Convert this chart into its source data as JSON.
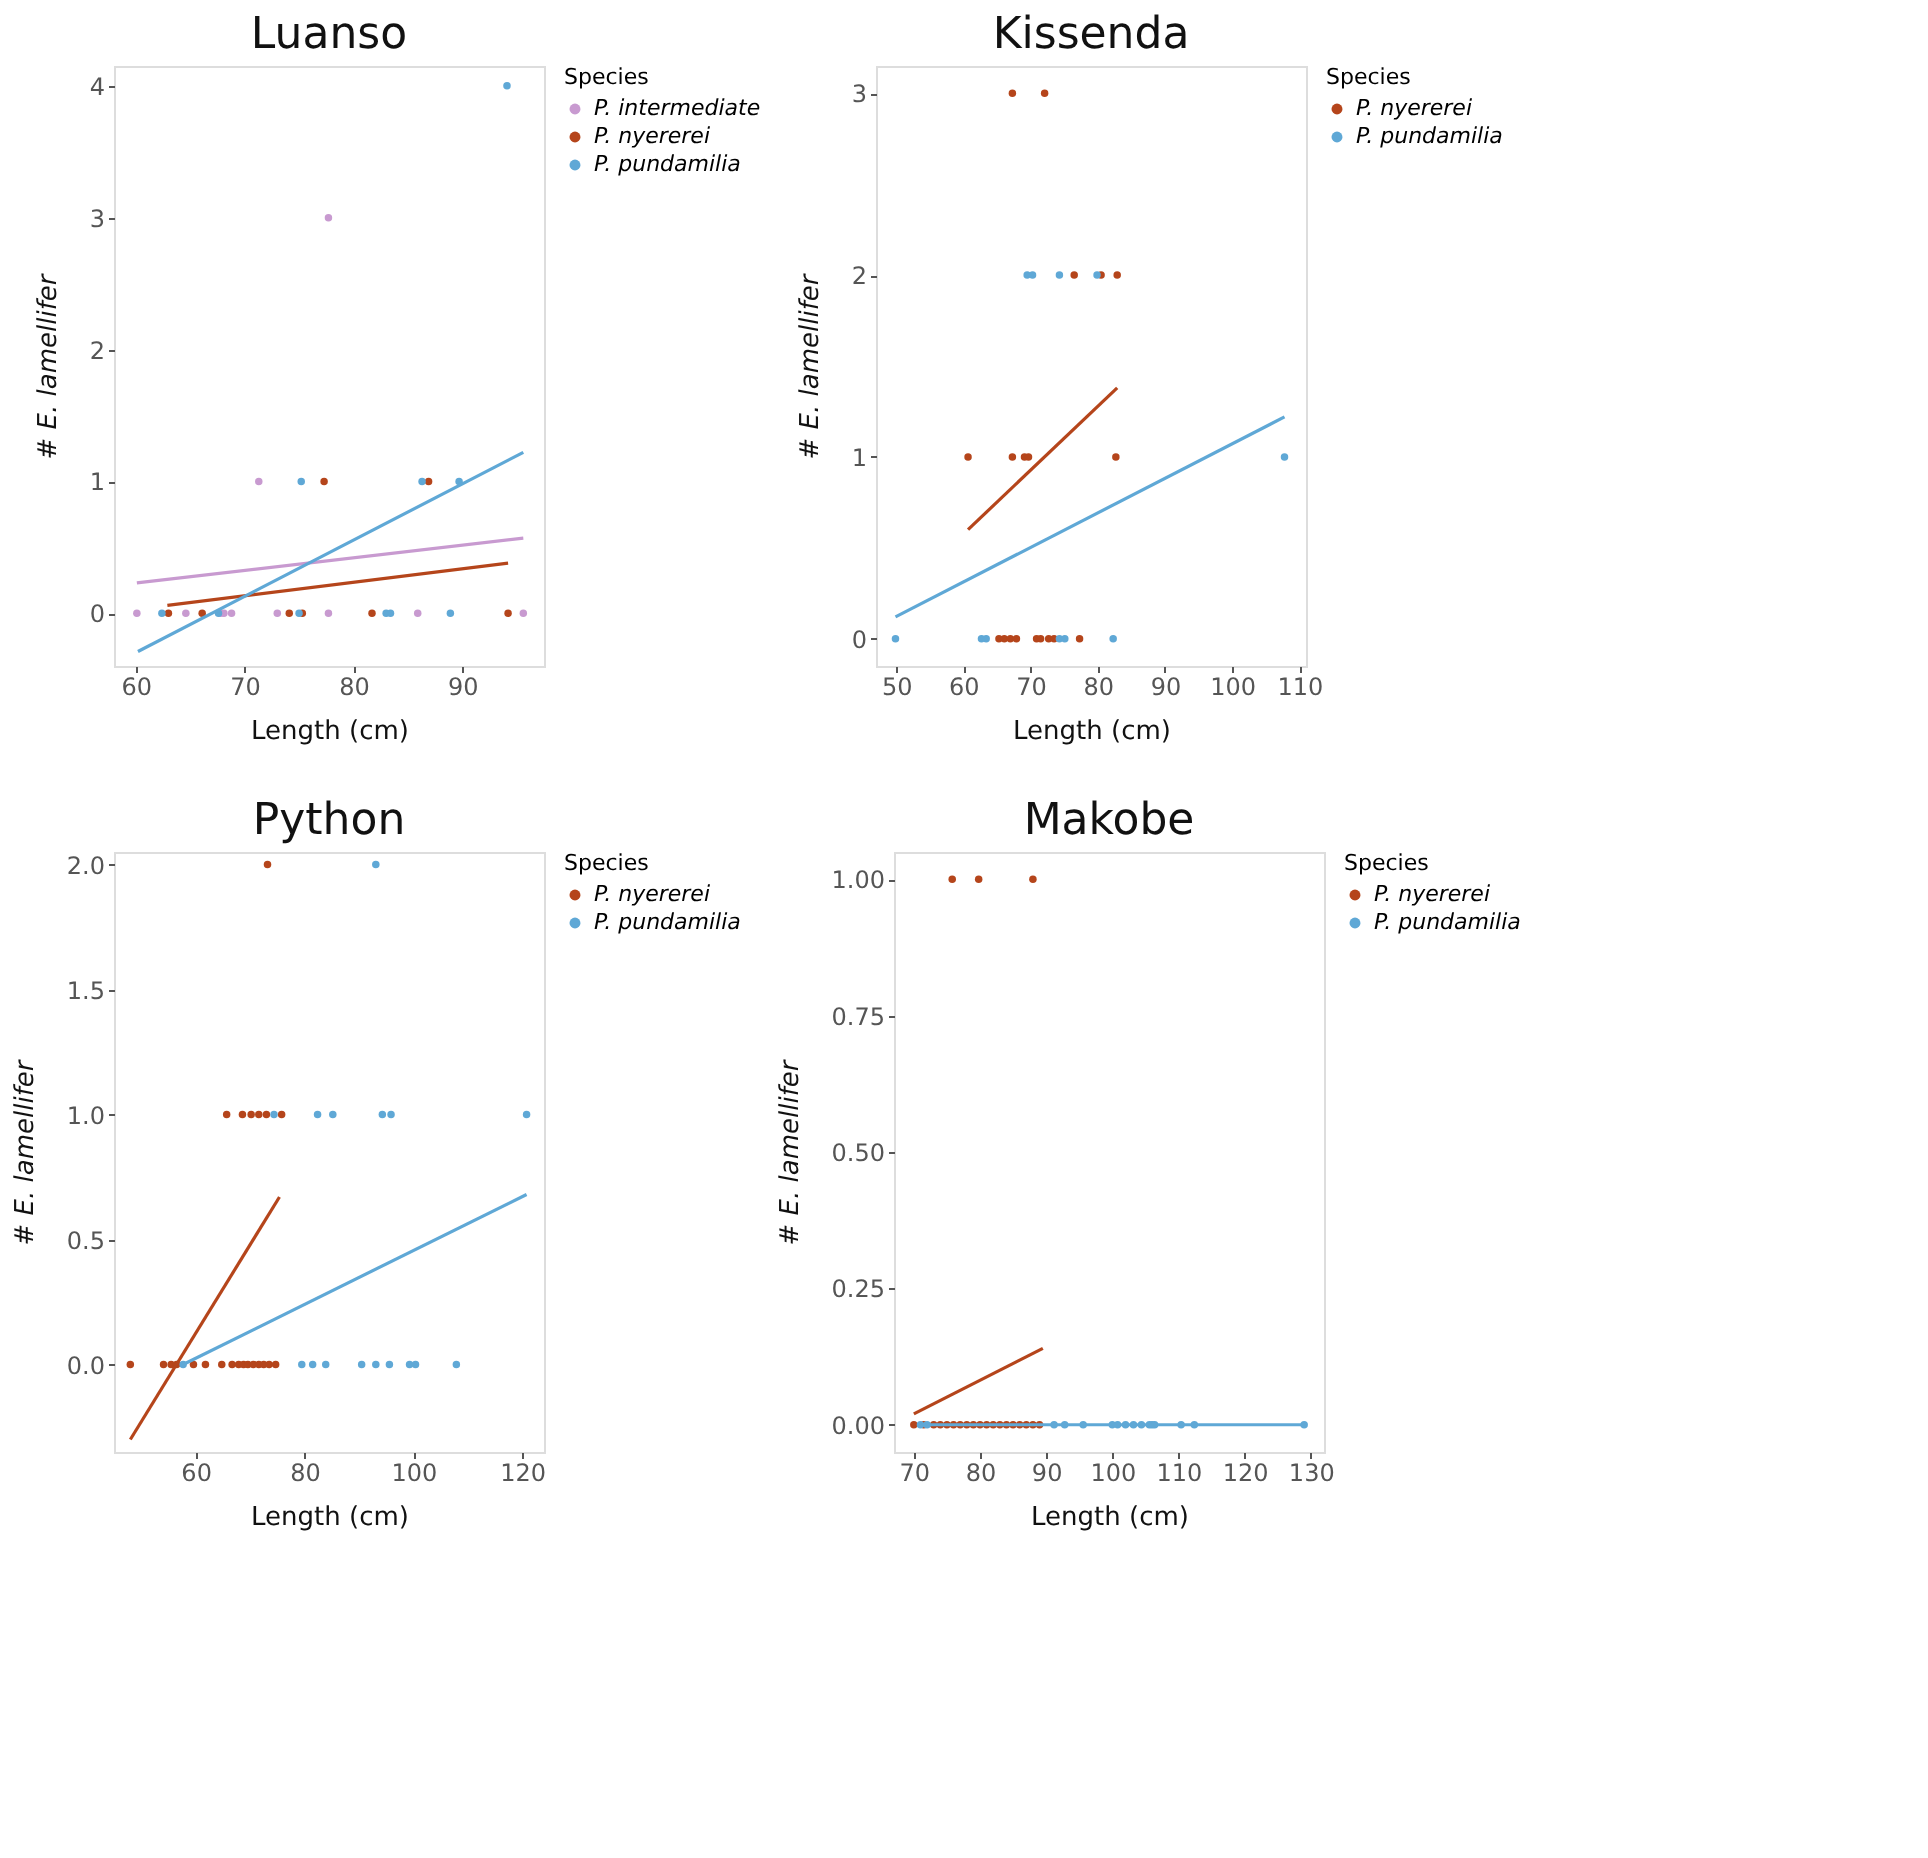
{
  "chart_data": [
    {
      "type": "scatter",
      "title": "Luanso",
      "xlabel": "Length (cm)",
      "ylabel": "# E. lamellifer",
      "legend_title": "Species",
      "legend": "right",
      "grid": false,
      "marker": "circle",
      "xlim": [
        58,
        97.5
      ],
      "xticks": [
        60,
        70,
        80,
        90
      ],
      "ylim": [
        -0.4,
        4.15
      ],
      "yticks": [
        0,
        1,
        2,
        3,
        4
      ],
      "series": [
        {
          "name": "P. intermediate",
          "color": "#c89ad0",
          "x": [
            60.1,
            64.6,
            67.8,
            68.1,
            68.8,
            73.0,
            77.7,
            85.9,
            95.6,
            71.3,
            77.7
          ],
          "values": [
            0,
            0,
            0,
            0,
            0,
            0,
            0,
            0,
            0,
            1,
            3
          ]
        },
        {
          "name": "P. nyererei",
          "color": "#b5451b",
          "x": [
            63.0,
            66.1,
            74.1,
            75.3,
            81.7,
            94.2,
            77.3,
            86.9
          ],
          "values": [
            0,
            0,
            0,
            0,
            0,
            0,
            1,
            1
          ]
        },
        {
          "name": "P. pundamilia",
          "color": "#5fa8d6",
          "x": [
            62.4,
            67.6,
            75.0,
            83.0,
            83.4,
            88.9,
            75.2,
            86.3,
            89.7,
            94.1
          ],
          "values": [
            0,
            0,
            0,
            0,
            0,
            0,
            1,
            1,
            1,
            4
          ]
        },
        {
          "type": "line",
          "marker": "none",
          "line_style": "solid",
          "color": "#c89ad0",
          "x": [
            60.1,
            95.6
          ],
          "values": [
            0.23,
            0.57
          ]
        },
        {
          "type": "line",
          "marker": "none",
          "line_style": "solid",
          "color": "#b5451b",
          "x": [
            62.9,
            94.2
          ],
          "values": [
            0.06,
            0.38
          ]
        },
        {
          "type": "line",
          "marker": "none",
          "line_style": "solid",
          "color": "#5fa8d6",
          "x": [
            60.2,
            95.6
          ],
          "values": [
            -0.29,
            1.22
          ]
        }
      ]
    },
    {
      "type": "scatter",
      "title": "Kissenda",
      "xlabel": "Length (cm)",
      "ylabel": "# E. lamellifer",
      "legend_title": "Species",
      "legend": "right",
      "grid": false,
      "marker": "circle",
      "xlim": [
        47,
        111
      ],
      "xticks": [
        50,
        60,
        70,
        80,
        90,
        100,
        110
      ],
      "ylim": [
        -0.15,
        3.15
      ],
      "yticks": [
        0,
        1,
        2,
        3
      ],
      "series": [
        {
          "name": "P. nyererei",
          "color": "#b5451b",
          "x": [
            67.3,
            72.1,
            76.5,
            80.5,
            82.9,
            60.7,
            67.3,
            69.1,
            69.7,
            82.7,
            65.3,
            66.1,
            67.0,
            67.9,
            70.9,
            71.5,
            72.7,
            73.5,
            77.3
          ],
          "values": [
            3,
            3,
            2,
            2,
            2,
            1,
            1,
            1,
            1,
            1,
            0,
            0,
            0,
            0,
            0,
            0,
            0,
            0,
            0
          ]
        },
        {
          "name": "P. pundamilia",
          "color": "#5fa8d6",
          "x": [
            69.5,
            70.3,
            74.3,
            79.9,
            107.8,
            49.9,
            62.7,
            63.4,
            74.3,
            75.1,
            82.3
          ],
          "values": [
            2,
            2,
            2,
            2,
            1,
            0,
            0,
            0,
            0,
            0,
            0
          ]
        },
        {
          "type": "line",
          "marker": "none",
          "line_style": "solid",
          "color": "#b5451b",
          "x": [
            60.7,
            82.9
          ],
          "values": [
            0.6,
            1.38
          ]
        },
        {
          "type": "line",
          "marker": "none",
          "line_style": "solid",
          "color": "#5fa8d6",
          "x": [
            49.9,
            107.8
          ],
          "values": [
            0.12,
            1.22
          ]
        }
      ]
    },
    {
      "type": "scatter",
      "title": "Python",
      "xlabel": "Length (cm)",
      "ylabel": "# E. lamellifer",
      "legend_title": "Species",
      "legend": "right",
      "grid": false,
      "marker": "circle",
      "xlim": [
        45,
        124
      ],
      "xticks": [
        60,
        80,
        100,
        120
      ],
      "ylim": [
        -0.35,
        2.05
      ],
      "yticks": [
        {
          "value": 0,
          "label": "0.0"
        },
        {
          "value": 0.5,
          "label": "0.5"
        },
        {
          "value": 1,
          "label": "1.0"
        },
        {
          "value": 1.5,
          "label": "1.5"
        },
        {
          "value": 2,
          "label": "2.0"
        }
      ],
      "series": [
        {
          "name": "P. nyererei",
          "color": "#b5451b",
          "x": [
            73.2,
            65.7,
            68.6,
            70.2,
            71.6,
            73.0,
            75.8,
            48.0,
            54.1,
            55.5,
            56.5,
            59.6,
            61.8,
            64.8,
            66.7,
            67.9,
            68.8,
            69.6,
            70.6,
            71.6,
            72.5,
            73.5,
            74.7
          ],
          "values": [
            2,
            1,
            1,
            1,
            1,
            1,
            1,
            0,
            0,
            0,
            0,
            0,
            0,
            0,
            0,
            0,
            0,
            0,
            0,
            0,
            0,
            0,
            0
          ]
        },
        {
          "name": "P. pundamilia",
          "color": "#5fa8d6",
          "x": [
            93.1,
            74.4,
            82.4,
            85.2,
            94.3,
            95.9,
            120.8,
            57.7,
            79.5,
            81.5,
            83.9,
            90.5,
            93.1,
            95.6,
            99.3,
            100.4,
            107.9
          ],
          "values": [
            2,
            1,
            1,
            1,
            1,
            1,
            1,
            0,
            0,
            0,
            0,
            0,
            0,
            0,
            0,
            0,
            0
          ]
        },
        {
          "type": "line",
          "marker": "none",
          "line_style": "solid",
          "color": "#b5451b",
          "x": [
            48.0,
            75.4
          ],
          "values": [
            -0.3,
            0.67
          ]
        },
        {
          "type": "line",
          "marker": "none",
          "line_style": "solid",
          "color": "#5fa8d6",
          "x": [
            57.7,
            120.8
          ],
          "values": [
            0.0,
            0.68
          ]
        }
      ]
    },
    {
      "type": "scatter",
      "title": "Makobe",
      "xlabel": "Length (cm)",
      "ylabel": "# E. lamellifer",
      "legend_title": "Species",
      "legend": "right",
      "grid": false,
      "marker": "circle",
      "xlim": [
        67,
        132
      ],
      "xticks": [
        70,
        80,
        90,
        100,
        110,
        120,
        130
      ],
      "ylim": [
        -0.05,
        1.05
      ],
      "yticks": [
        {
          "value": 0,
          "label": "0.00"
        },
        {
          "value": 0.25,
          "label": "0.25"
        },
        {
          "value": 0.5,
          "label": "0.50"
        },
        {
          "value": 0.75,
          "label": "0.75"
        },
        {
          "value": 1,
          "label": "1.00"
        }
      ],
      "series": [
        {
          "name": "P. nyererei",
          "color": "#b5451b",
          "x": [
            75.8,
            79.8,
            88.0,
            70.0,
            71.5,
            73,
            74,
            75,
            76,
            77,
            78,
            79,
            80,
            81,
            82,
            83,
            84,
            85,
            86,
            87,
            88,
            89
          ],
          "values": [
            1,
            1,
            1,
            0,
            0,
            0,
            0,
            0,
            0,
            0,
            0,
            0,
            0,
            0,
            0,
            0,
            0,
            0,
            0,
            0,
            0,
            0
          ]
        },
        {
          "name": "P. pundamilia",
          "color": "#5fa8d6",
          "x": [
            71,
            72,
            91.2,
            92.8,
            95.6,
            100,
            100.8,
            102,
            103.2,
            104.4,
            105.6,
            106,
            106.4,
            110.4,
            112.4,
            129
          ],
          "values": [
            0,
            0,
            0,
            0,
            0,
            0,
            0,
            0,
            0,
            0,
            0,
            0,
            0,
            0,
            0,
            0
          ]
        },
        {
          "type": "line",
          "marker": "none",
          "line_style": "solid",
          "color": "#b5451b",
          "x": [
            70.0,
            89.5
          ],
          "values": [
            0.02,
            0.14
          ]
        },
        {
          "type": "line",
          "marker": "none",
          "line_style": "solid",
          "color": "#5fa8d6",
          "x": [
            70.5,
            129
          ],
          "values": [
            0.0,
            0.0
          ]
        }
      ]
    }
  ]
}
